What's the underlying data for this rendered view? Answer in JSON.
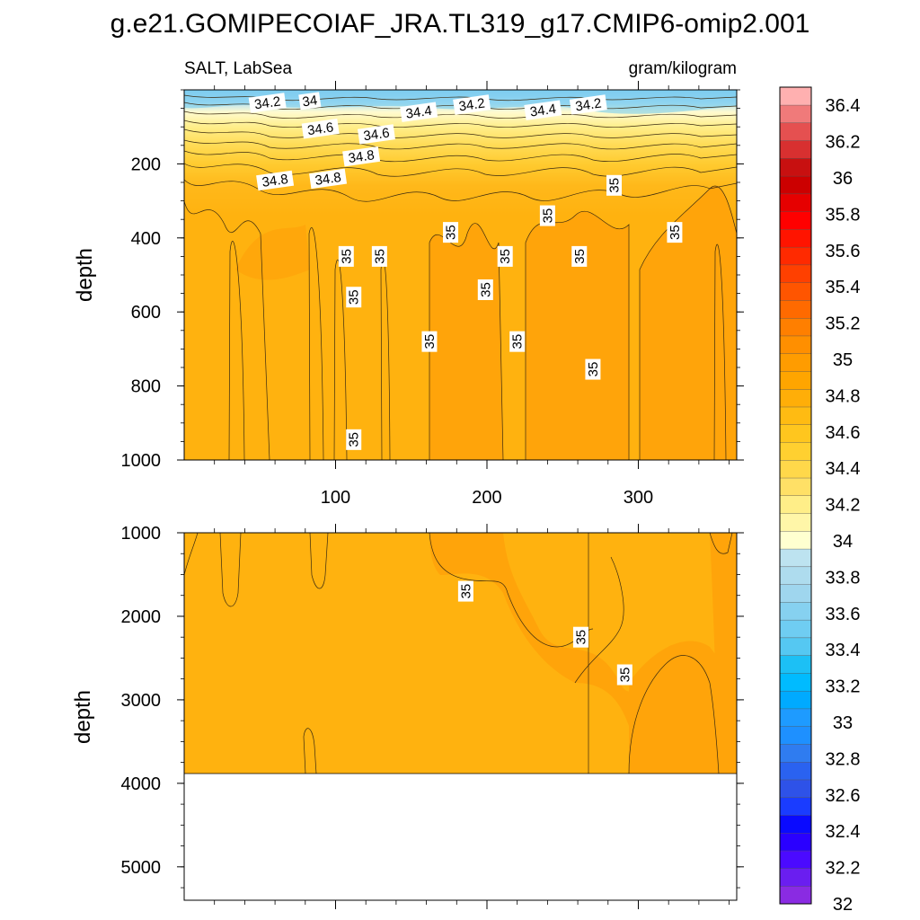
{
  "chart_data": {
    "type": "contour",
    "title": "g.e21.GOMIPECOIAF_JRA.TL319_g17.CMIP6-omip2.001",
    "variable_label": "SALT, LabSea",
    "units_label": "gram/kilogram",
    "ylabel": "depth",
    "x_ticks": [
      "100",
      "200",
      "300"
    ],
    "x_range": [
      0,
      365
    ],
    "top_panel": {
      "ylim": [
        0,
        1000
      ],
      "y_ticks": [
        "200",
        "400",
        "600",
        "800",
        "1000"
      ],
      "contour_labels": [
        {
          "text": "34",
          "x": 83,
          "depth": 30
        },
        {
          "text": "34.2",
          "x": 55,
          "depth": 35
        },
        {
          "text": "34.2",
          "x": 190,
          "depth": 40
        },
        {
          "text": "34.2",
          "x": 267,
          "depth": 40
        },
        {
          "text": "34.4",
          "x": 155,
          "depth": 60
        },
        {
          "text": "34.4",
          "x": 237,
          "depth": 55
        },
        {
          "text": "34.6",
          "x": 90,
          "depth": 105
        },
        {
          "text": "34.6",
          "x": 127,
          "depth": 120
        },
        {
          "text": "34.8",
          "x": 117,
          "depth": 180
        },
        {
          "text": "34.8",
          "x": 60,
          "depth": 245
        },
        {
          "text": "34.8",
          "x": 95,
          "depth": 240
        },
        {
          "text": "35",
          "x": 284,
          "depth": 258
        },
        {
          "text": "35",
          "x": 240,
          "depth": 340
        },
        {
          "text": "35",
          "x": 324,
          "depth": 385
        },
        {
          "text": "35",
          "x": 176,
          "depth": 385
        },
        {
          "text": "35",
          "x": 107,
          "depth": 450
        },
        {
          "text": "35",
          "x": 129,
          "depth": 450
        },
        {
          "text": "35",
          "x": 212,
          "depth": 450
        },
        {
          "text": "35",
          "x": 261,
          "depth": 450
        },
        {
          "text": "35",
          "x": 112,
          "depth": 560
        },
        {
          "text": "35",
          "x": 199,
          "depth": 540
        },
        {
          "text": "35",
          "x": 162,
          "depth": 680
        },
        {
          "text": "35",
          "x": 220,
          "depth": 680
        },
        {
          "text": "35",
          "x": 270,
          "depth": 755
        },
        {
          "text": "35",
          "x": 112,
          "depth": 945
        }
      ]
    },
    "bottom_panel": {
      "ylim": [
        1000,
        5400
      ],
      "y_ticks": [
        "1000",
        "2000",
        "3000",
        "4000",
        "5000"
      ],
      "ocean_floor_depth": 3860,
      "contour_labels": [
        {
          "text": "35",
          "x": 186,
          "depth": 1700
        },
        {
          "text": "35",
          "x": 262,
          "depth": 2250
        },
        {
          "text": "35",
          "x": 291,
          "depth": 2700
        }
      ]
    },
    "colorbar": {
      "levels": [
        32.0,
        32.1,
        32.2,
        32.3,
        32.4,
        32.5,
        32.6,
        32.7,
        32.8,
        32.9,
        33.0,
        33.1,
        33.2,
        33.3,
        33.4,
        33.5,
        33.6,
        33.7,
        33.8,
        33.9,
        34.0,
        34.1,
        34.2,
        34.3,
        34.4,
        34.5,
        34.6,
        34.7,
        34.8,
        34.9,
        35.0,
        35.1,
        35.2,
        35.3,
        35.4,
        35.5,
        35.6,
        35.7,
        35.8,
        35.9,
        36.0,
        36.1,
        36.2,
        36.3,
        36.4,
        36.5
      ],
      "tick_labels": [
        "32",
        "32.2",
        "32.4",
        "32.6",
        "32.8",
        "33",
        "33.2",
        "33.4",
        "33.6",
        "33.8",
        "34",
        "34.2",
        "34.4",
        "34.6",
        "34.8",
        "35",
        "35.2",
        "35.4",
        "35.6",
        "35.8",
        "36",
        "36.2",
        "36.4"
      ],
      "colors_bottom_to_top": [
        "#8a2be2",
        "#6a1ef0",
        "#4b0aff",
        "#2a00ff",
        "#0a0aff",
        "#1a3cff",
        "#2e52e8",
        "#2a62f0",
        "#2f7cf0",
        "#1e90ff",
        "#1e9bff",
        "#00aaff",
        "#00bbff",
        "#1cc0f5",
        "#55c8f2",
        "#6fcdf2",
        "#86d1f0",
        "#9fd6ee",
        "#aedcee",
        "#bde3f0",
        "#ffffd0",
        "#fff6a8",
        "#ffee88",
        "#ffe066",
        "#ffd84a",
        "#ffd030",
        "#ffc61e",
        "#ffbb12",
        "#ffae08",
        "#ffa500",
        "#ff9c00",
        "#ff8f00",
        "#ff7f00",
        "#ff6a00",
        "#ff5500",
        "#ff4000",
        "#ff2a00",
        "#ff1400",
        "#ff0000",
        "#e60000",
        "#cc0000",
        "#c81010",
        "#d83030",
        "#e55050",
        "#f07a7a",
        "#ffb0b0"
      ]
    }
  }
}
